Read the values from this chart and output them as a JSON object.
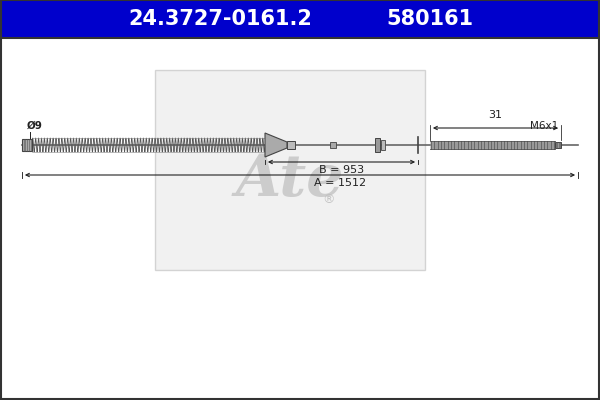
{
  "bg_color": "#ffffff",
  "title_bg": "#0000cc",
  "title_text_color": "#ffffff",
  "border_color": "#333333",
  "title_part_number": "24.3727-0161.2",
  "title_ref_number": "580161",
  "title_fontsize": 15,
  "dim_A_label": "A = 1512",
  "dim_B_label": "B = 953",
  "dim_31_label": "31",
  "label_phi9": "Ø9",
  "label_M6x1": "M6x1",
  "cable_color": "#666666",
  "spring_color": "#555555",
  "dim_color": "#222222",
  "watermark_box_color": "#e0e0e0",
  "watermark_text_color": "#c0c0c0",
  "fitting_color": "#999999",
  "fitting_edge": "#444444"
}
